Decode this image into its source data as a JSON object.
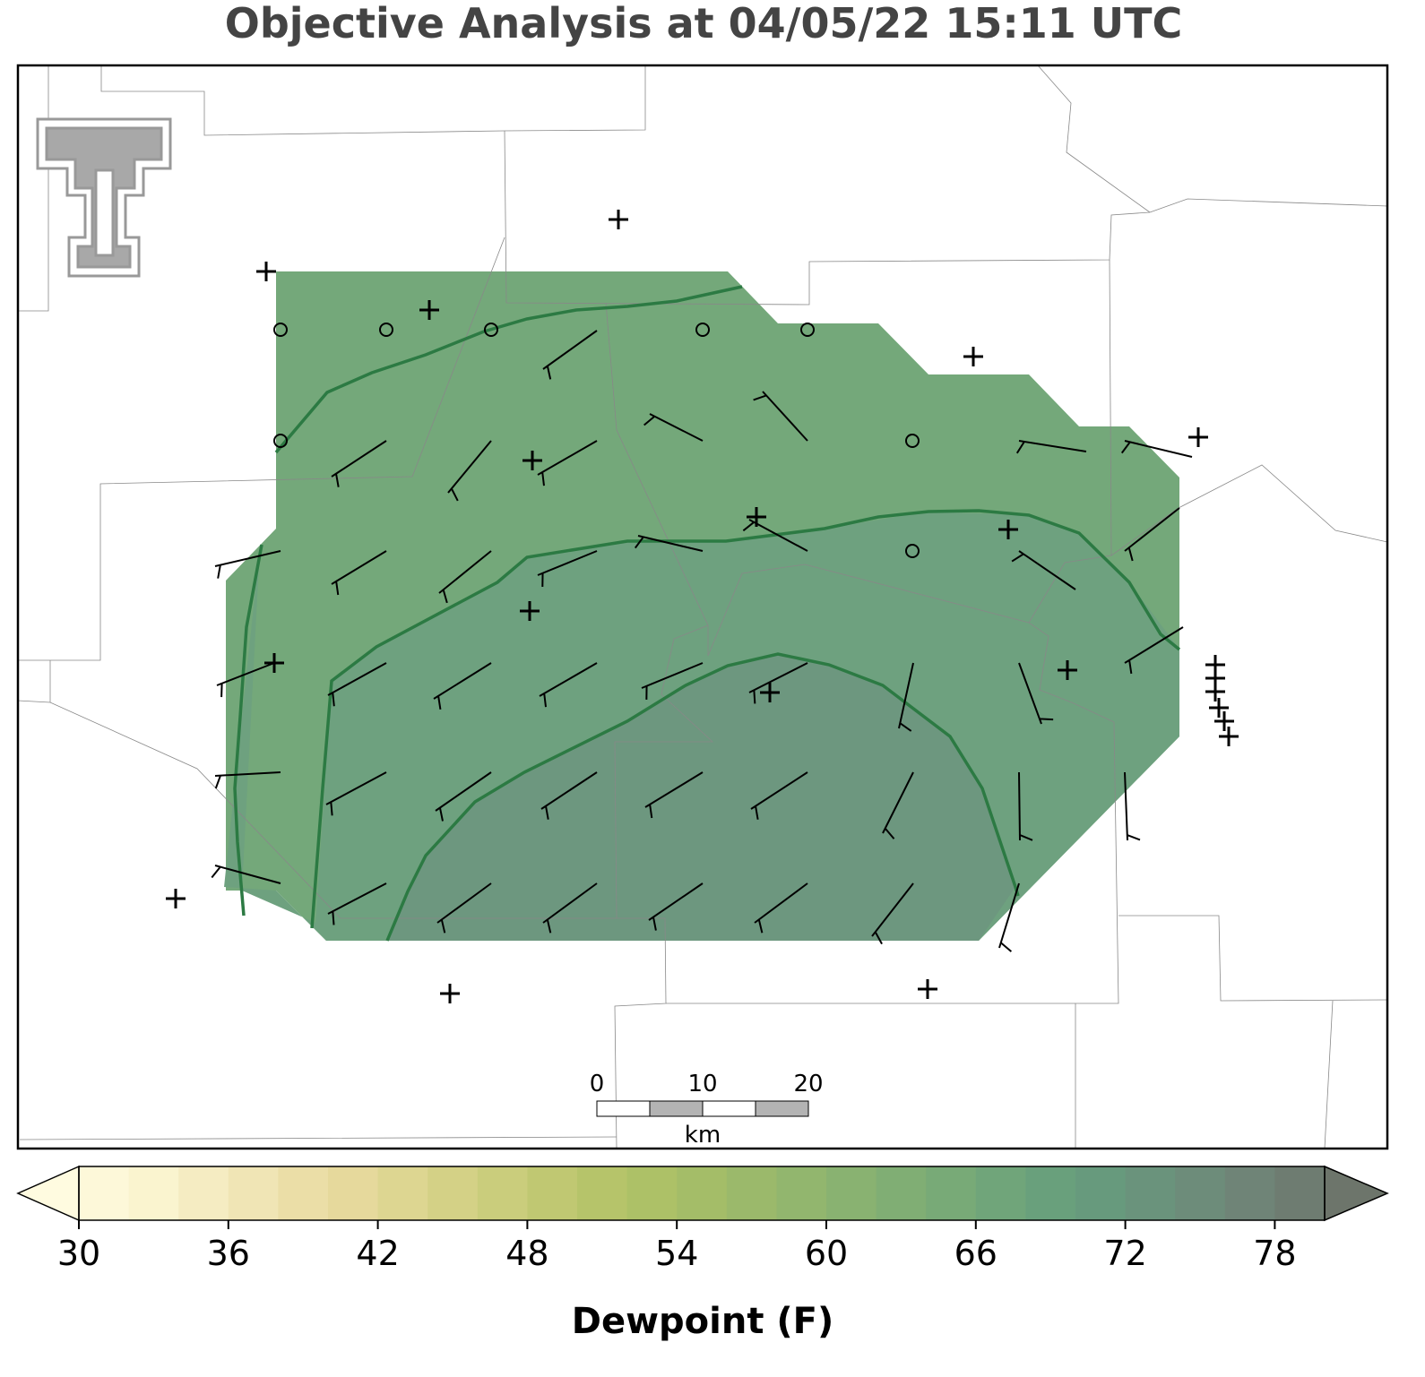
{
  "header": {
    "title": "Objective Analysis at 04/05/22 15:11 UTC"
  },
  "scale_bar": {
    "range": [
      0,
      20
    ],
    "ticks": [
      0,
      10,
      20
    ],
    "unit": "km"
  },
  "colorbar": {
    "label": "Dewpoint (F)",
    "range": [
      30,
      80
    ],
    "ticks": [
      30,
      36,
      42,
      48,
      54,
      60,
      66,
      72,
      78
    ],
    "under_color": "#fffbe0",
    "over_color": "#6d756b",
    "colors": [
      "#fdf8d9",
      "#faf4cf",
      "#f5ecc2",
      "#f0e5b5",
      "#ebdea7",
      "#e6d99c",
      "#ddd691",
      "#d4d186",
      "#cacd7c",
      "#c0c872",
      "#b6c46a",
      "#adc167",
      "#a4bd68",
      "#9bb96b",
      "#92b66e",
      "#89b271",
      "#80ae74",
      "#78aa77",
      "#70a57a",
      "#69a07c",
      "#679a7d",
      "#6a937c",
      "#6d8c7a",
      "#6f8477",
      "#6e7c71"
    ]
  }
}
